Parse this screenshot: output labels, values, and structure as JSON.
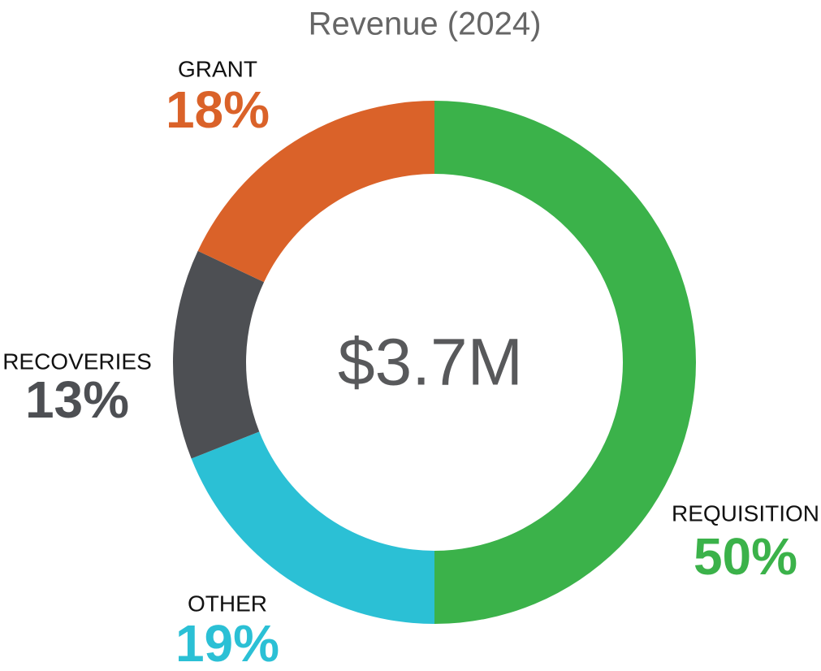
{
  "chart_data": {
    "type": "donut",
    "title": "Revenue (2024)",
    "center_text": "$3.7M",
    "categories": [
      "REQUISITION",
      "OTHER",
      "RECOVERIES",
      "GRANT"
    ],
    "values": [
      50,
      19,
      13,
      18
    ],
    "value_labels": [
      "50%",
      "19%",
      "13%",
      "18%"
    ],
    "colors": [
      "#3bb24a",
      "#2bc0d5",
      "#4d4f53",
      "#da6229"
    ]
  }
}
